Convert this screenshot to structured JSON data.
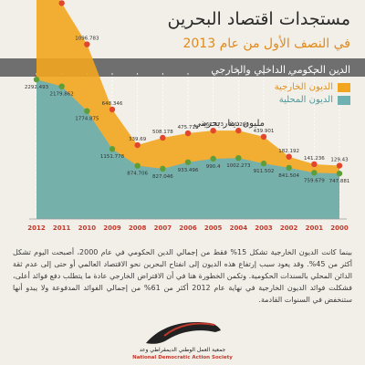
{
  "header": {
    "title": "مستجدات اقتصاد البحرين",
    "subtitle": "في النصف الأول من عام 2013"
  },
  "chart_data": {
    "type": "area",
    "title": "الدين الحكومي الداخلي والخارجي",
    "unit_label": "مليون دينار بحريني",
    "categories": [
      "2012",
      "2011",
      "2010",
      "2009",
      "2008",
      "2007",
      "2006",
      "2005",
      "2004",
      "2003",
      "2002",
      "2001",
      "2000"
    ],
    "series": [
      {
        "name": "الديون الخارجية",
        "color": "#f2a51f",
        "marker_color": "#e2462b",
        "values": [
          1893.394,
          1368.875,
          1096.783,
          648.346,
          339.69,
          508.178,
          475.719,
          462.373,
          451.296,
          439.901,
          182.192,
          141.236,
          129.43
        ]
      },
      {
        "name": "الديون المحلية",
        "color": "#6fb0b2",
        "marker_color": "#5d9e3a",
        "values": [
          2292.493,
          2179.862,
          1774.875,
          1151.778,
          874.706,
          827.046,
          933.496,
          990.4,
          1002.273,
          911.502,
          841.504,
          759.679,
          747.881
        ]
      }
    ],
    "labels_external": [
      "1893.394",
      "1368.875",
      "1096.783",
      "648.346",
      "339.69",
      "508.178",
      "475.719",
      "462.373",
      "451.296",
      "439.901",
      "182.192",
      "141.236",
      "129.43"
    ],
    "labels_domestic": [
      "2292.493",
      "2179.862",
      "1774.875",
      "1151.778",
      "874.706",
      "827.046",
      "933.496",
      "990.4",
      "1002.273",
      "911.502",
      "841.504",
      "759.679",
      "747.881"
    ],
    "ylim": [
      0,
      2400
    ],
    "grid": true,
    "legend": "top-right"
  },
  "body": {
    "paragraph": "بينما كانت الديون الخارجية تشكل 15% فقط من إجمالي الدين الحكومي في عام 2000، أصبحت اليوم تشكل أكثر من 45%. وقد يعود سبب إرتفاع هذه الديون إلى انفتاح البحرين نحو الاقتصاد العالمي أو حتى إلى عدم ثقة الدائن المحلي بالسندات الحكومية. وتكمن الخطورة هنا في أن الاقتراض الخارجي عادة ما يتطلب دفع فوائد أعلى، فشكلت فوائد الديون الخارجية في نهاية عام 2012 أكثر من 61% من إجمالي الفوائد المدفوعة ولا يبدو أنها ستنخفض في السنوات القادمة."
  },
  "footer": {
    "org_name_ar": "جمعية العمل الوطني الديمقراطي وعد",
    "org_name_en": "National Democratic Action Society"
  }
}
